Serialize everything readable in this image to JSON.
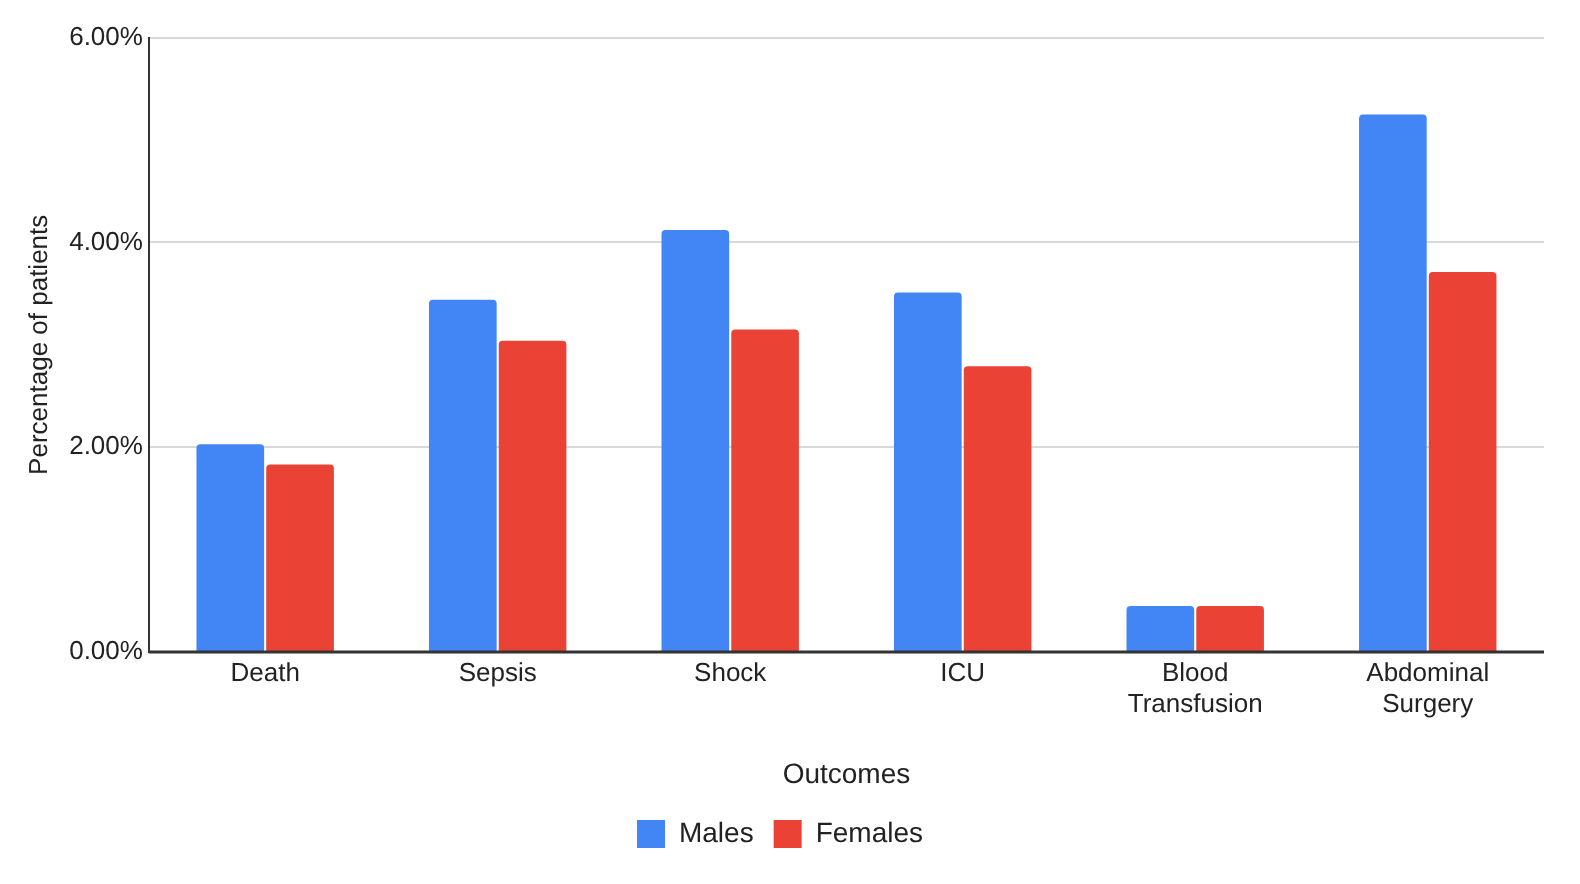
{
  "chart_data": {
    "type": "bar",
    "xlabel": "Outcomes",
    "ylabel": "Percentage of patients",
    "categories": [
      "Death",
      "Sepsis",
      "Shock",
      "ICU",
      "Blood Transfusion",
      "Abdominal Surgery"
    ],
    "series": [
      {
        "name": "Males",
        "color": "#4285f4",
        "values": [
          2.03,
          3.44,
          4.12,
          3.51,
          0.45,
          5.25
        ]
      },
      {
        "name": "Females",
        "color": "#ea4335",
        "values": [
          1.83,
          3.04,
          3.15,
          2.79,
          0.45,
          3.71
        ]
      }
    ],
    "ylim": [
      0,
      6
    ],
    "yticks": [
      {
        "value": 0,
        "label": "0.00%"
      },
      {
        "value": 2,
        "label": "2.00%"
      },
      {
        "value": 4,
        "label": "4.00%"
      },
      {
        "value": 6,
        "label": "6.00%"
      }
    ],
    "grid": "y",
    "legend": "bottom"
  }
}
